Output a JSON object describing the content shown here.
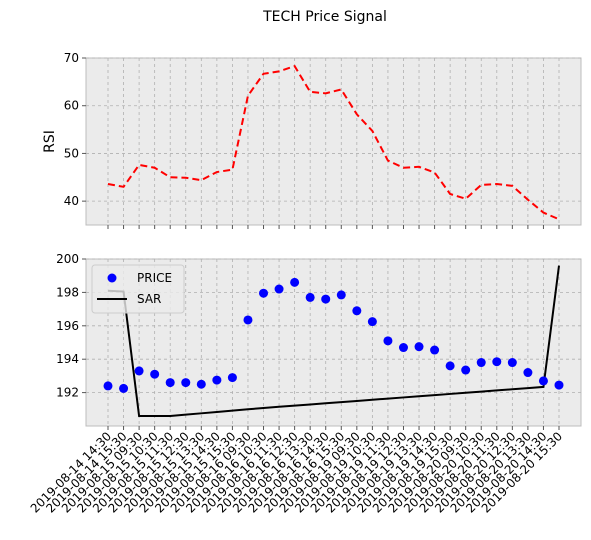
{
  "chart_data": [
    {
      "type": "line",
      "title": "TECH Price Signal",
      "ylabel": "RSI",
      "ylim": [
        35,
        70
      ],
      "yticks": [
        40,
        50,
        60,
        70
      ],
      "grid": true,
      "series": [
        {
          "color": "#ff0000",
          "style": "dashed",
          "values": [
            43.6,
            43.0,
            47.6,
            47.0,
            45.0,
            44.9,
            44.4,
            46.1,
            46.6,
            62.1,
            66.7,
            67.2,
            68.3,
            62.9,
            62.6,
            63.4,
            58.2,
            54.7,
            48.5,
            47.0,
            47.2,
            46.0,
            41.5,
            40.5,
            43.4,
            43.6,
            43.2,
            40.3,
            37.6,
            36.2
          ]
        }
      ]
    },
    {
      "type": "scatter",
      "ylim": [
        190,
        200
      ],
      "yticks": [
        192,
        194,
        196,
        198,
        200
      ],
      "grid": true,
      "legend_position": "top-left",
      "categories": [
        "2019-08-14 14:30",
        "2019-08-14 15:30",
        "2019-08-15 09:30",
        "2019-08-15 10:30",
        "2019-08-15 11:30",
        "2019-08-15 12:30",
        "2019-08-15 13:30",
        "2019-08-15 14:30",
        "2019-08-15 15:30",
        "2019-08-16 09:30",
        "2019-08-16 10:30",
        "2019-08-16 11:30",
        "2019-08-16 12:30",
        "2019-08-16 13:30",
        "2019-08-16 14:30",
        "2019-08-16 15:30",
        "2019-08-19 09:30",
        "2019-08-19 10:30",
        "2019-08-19 11:30",
        "2019-08-19 12:30",
        "2019-08-19 13:30",
        "2019-08-19 14:30",
        "2019-08-19 15:30",
        "2019-08-20 09:30",
        "2019-08-20 10:30",
        "2019-08-20 11:30",
        "2019-08-20 12:30",
        "2019-08-20 13:30",
        "2019-08-20 14:30",
        "2019-08-20 15:30"
      ],
      "series": [
        {
          "name": "PRICE",
          "type": "scatter",
          "color": "#0000ff",
          "values": [
            192.4,
            192.25,
            193.3,
            193.1,
            192.6,
            192.6,
            192.5,
            192.75,
            192.9,
            196.35,
            197.95,
            198.2,
            198.6,
            197.7,
            197.6,
            197.85,
            196.9,
            196.25,
            195.1,
            194.7,
            194.75,
            194.55,
            193.6,
            193.35,
            193.8,
            193.85,
            193.8,
            193.2,
            192.7,
            192.45
          ]
        },
        {
          "name": "SAR",
          "type": "line",
          "color": "#000000",
          "values": [
            198.1,
            198.05,
            190.6,
            190.6,
            190.6,
            190.68,
            190.76,
            190.84,
            190.92,
            191.0,
            191.08,
            191.15,
            191.22,
            191.29,
            191.36,
            191.43,
            191.5,
            191.57,
            191.64,
            191.71,
            191.78,
            191.85,
            191.92,
            191.99,
            192.06,
            192.13,
            192.2,
            192.27,
            192.34,
            199.6
          ]
        }
      ]
    }
  ]
}
